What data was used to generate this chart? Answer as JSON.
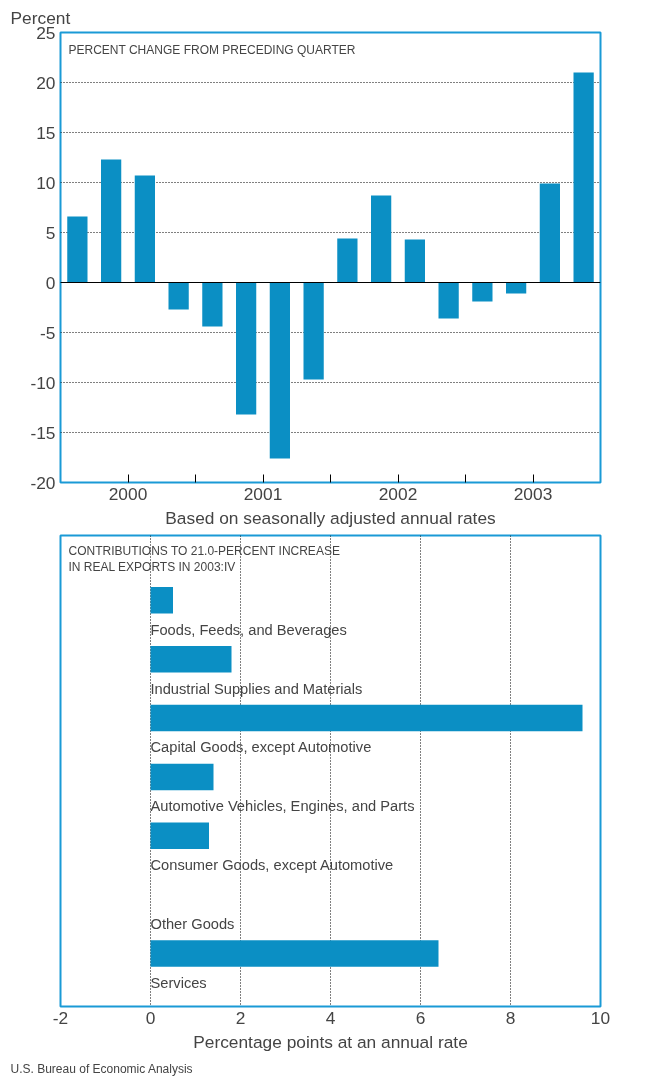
{
  "chart_data": [
    {
      "type": "bar",
      "title": "PERCENT CHANGE FROM PRECEDING QUARTER",
      "ylabel": "Percent",
      "xlabel": "Based on seasonally adjusted annual rates",
      "x": [
        2000.125,
        2000.375,
        2000.625,
        2000.875,
        2001.125,
        2001.375,
        2001.625,
        2001.875,
        2002.125,
        2002.375,
        2002.625,
        2002.875,
        2003.125,
        2003.375,
        2003.625,
        2003.875
      ],
      "values": [
        6.6,
        12.3,
        10.7,
        -2.7,
        -4.4,
        -13.2,
        -17.6,
        -9.7,
        4.4,
        8.7,
        4.3,
        -3.6,
        -1.9,
        -1.1,
        9.9,
        21.0
      ],
      "color": "#0b8fc4",
      "xlim": [
        2000,
        2004
      ],
      "xticks": [
        {
          "value": 2000.5,
          "label": "2000"
        },
        {
          "value": 2001,
          "label": null
        },
        {
          "value": 2001.5,
          "label": "2001"
        },
        {
          "value": 2002,
          "label": null
        },
        {
          "value": 2002.5,
          "label": "2002"
        },
        {
          "value": 2003,
          "label": null
        },
        {
          "value": 2003.5,
          "label": "2003"
        }
      ],
      "ylim": [
        -20,
        25
      ],
      "yticks": [
        -20,
        -15,
        -10,
        -5,
        0,
        5,
        10,
        15,
        20,
        25
      ],
      "grid": "y"
    },
    {
      "type": "bar",
      "orientation": "horizontal",
      "title": "CONTRIBUTIONS TO 21.0-PERCENT INCREASE\nIN REAL EXPORTS IN 2003:IV",
      "xlabel": "Percentage points at an annual rate",
      "categories": [
        "Foods, Feeds, and Beverages",
        "Industrial Supplies and Materials",
        "Capital Goods, except Automotive",
        "Automotive Vehicles, Engines, and Parts",
        "Consumer Goods, except Automotive",
        "Other Goods",
        "Services"
      ],
      "values": [
        0.5,
        1.8,
        9.6,
        1.4,
        1.3,
        null,
        6.4
      ],
      "color": "#0b8fc4",
      "xlim": [
        -2,
        10
      ],
      "xticks": [
        -2,
        0,
        2,
        4,
        6,
        8,
        10
      ],
      "grid": "x",
      "annotations": [
        "U.S. Bureau of Economic Analysis"
      ]
    }
  ]
}
